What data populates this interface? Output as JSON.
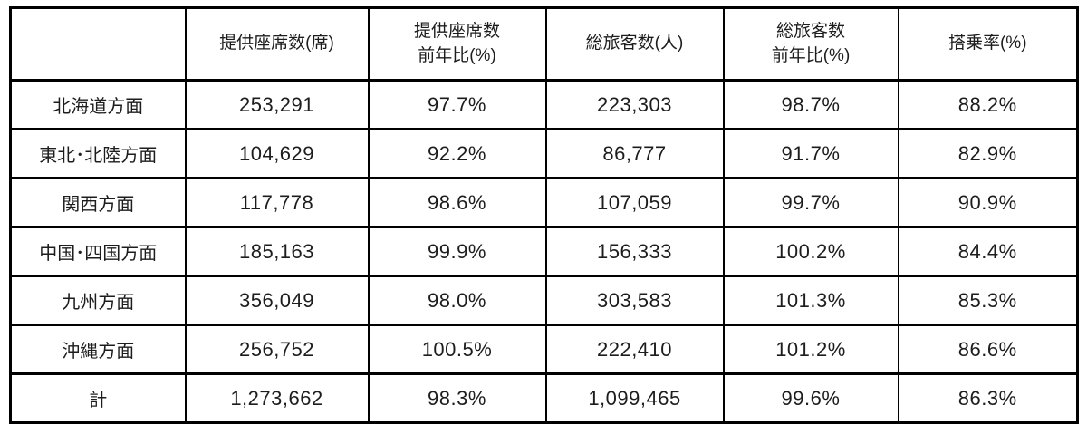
{
  "table": {
    "corner_label": "",
    "columns": [
      "提供座席数(席)",
      "提供座席数\n前年比(%)",
      "総旅客数(人)",
      "総旅客数\n前年比(%)",
      "搭乗率(%)"
    ],
    "rows": [
      {
        "label": "北海道方面",
        "values": [
          "253,291",
          "97.7%",
          "223,303",
          "98.7%",
          "88.2%"
        ]
      },
      {
        "label": "東北･北陸方面",
        "values": [
          "104,629",
          "92.2%",
          "86,777",
          "91.7%",
          "82.9%"
        ]
      },
      {
        "label": "関西方面",
        "values": [
          "117,778",
          "98.6%",
          "107,059",
          "99.7%",
          "90.9%"
        ]
      },
      {
        "label": "中国･四国方面",
        "values": [
          "185,163",
          "99.9%",
          "156,333",
          "100.2%",
          "84.4%"
        ]
      },
      {
        "label": "九州方面",
        "values": [
          "356,049",
          "98.0%",
          "303,583",
          "101.3%",
          "85.3%"
        ]
      },
      {
        "label": "沖縄方面",
        "values": [
          "256,752",
          "100.5%",
          "222,410",
          "101.2%",
          "86.6%"
        ]
      },
      {
        "label": "計",
        "values": [
          "1,273,662",
          "98.3%",
          "1,099,465",
          "99.6%",
          "86.3%"
        ]
      }
    ],
    "colors": {
      "border": "#000000",
      "text": "#1d1d1d",
      "background": "#ffffff"
    }
  }
}
